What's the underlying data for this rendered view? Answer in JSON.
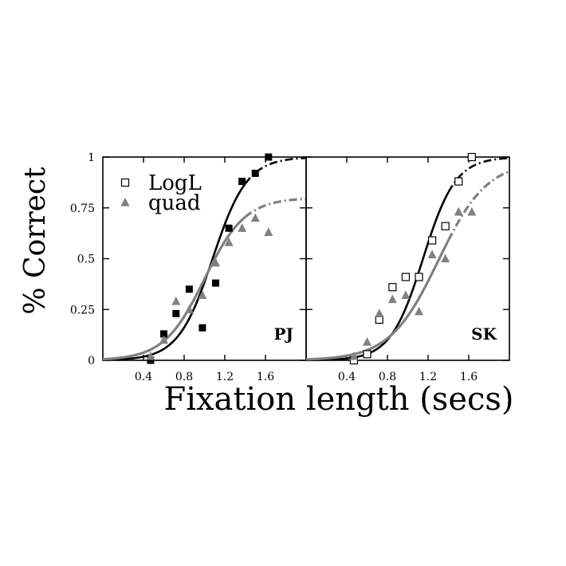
{
  "chart_data": {
    "type": "scatter",
    "xlabel": "Fixation length (secs)",
    "ylabel": "% Correct",
    "xlim": [
      0,
      2.0
    ],
    "ylim": [
      0,
      1
    ],
    "xticks": [
      "0.4",
      "0.8",
      "1.2",
      "1.6"
    ],
    "yticks": [
      "0",
      "0.25",
      "0.5",
      "0.75",
      "1"
    ],
    "grid": false,
    "legend": {
      "placement": "top-left",
      "entries": [
        {
          "name": "LogL",
          "marker": "square"
        },
        {
          "name": "quad",
          "marker": "triangle"
        }
      ]
    },
    "colors": {
      "logl": "#000000",
      "quad": "#808080"
    },
    "panels": [
      {
        "label": "PJ",
        "marker_fill": "filled",
        "series": [
          {
            "name": "LogL",
            "points": [
              [
                0.47,
                0.0
              ],
              [
                0.6,
                0.13
              ],
              [
                0.72,
                0.23
              ],
              [
                0.85,
                0.35
              ],
              [
                0.98,
                0.16
              ],
              [
                1.11,
                0.38
              ],
              [
                1.24,
                0.65
              ],
              [
                1.37,
                0.88
              ],
              [
                1.5,
                0.92
              ],
              [
                1.63,
                1.0
              ]
            ]
          },
          {
            "name": "quad",
            "points": [
              [
                0.47,
                0.02
              ],
              [
                0.6,
                0.1
              ],
              [
                0.72,
                0.29
              ],
              [
                0.85,
                0.25
              ],
              [
                0.98,
                0.32
              ],
              [
                1.11,
                0.48
              ],
              [
                1.24,
                0.58
              ],
              [
                1.37,
                0.65
              ],
              [
                1.5,
                0.7
              ],
              [
                1.63,
                0.63
              ]
            ]
          }
        ],
        "fits": [
          {
            "name": "LogL",
            "style": "solid-then-dashdot",
            "ceiling": 1.0,
            "midpoint": 1.08,
            "scale": 0.17
          },
          {
            "name": "quad",
            "style": "solid-then-dashdot",
            "ceiling": 0.8,
            "midpoint": 1.0,
            "scale": 0.2
          }
        ]
      },
      {
        "label": "SK",
        "marker_fill": "open",
        "series": [
          {
            "name": "LogL",
            "points": [
              [
                0.47,
                0.0
              ],
              [
                0.6,
                0.03
              ],
              [
                0.72,
                0.2
              ],
              [
                0.85,
                0.36
              ],
              [
                0.98,
                0.41
              ],
              [
                1.11,
                0.41
              ],
              [
                1.24,
                0.59
              ],
              [
                1.37,
                0.66
              ],
              [
                1.5,
                0.88
              ],
              [
                1.63,
                1.0
              ]
            ]
          },
          {
            "name": "quad",
            "points": [
              [
                0.47,
                0.02
              ],
              [
                0.6,
                0.09
              ],
              [
                0.72,
                0.23
              ],
              [
                0.85,
                0.3
              ],
              [
                0.98,
                0.32
              ],
              [
                1.11,
                0.24
              ],
              [
                1.24,
                0.52
              ],
              [
                1.37,
                0.5
              ],
              [
                1.5,
                0.73
              ],
              [
                1.63,
                0.73
              ]
            ]
          }
        ],
        "fits": [
          {
            "name": "LogL",
            "style": "solid-then-dashdot",
            "ceiling": 1.0,
            "midpoint": 1.15,
            "scale": 0.16
          },
          {
            "name": "quad",
            "style": "solid-then-dashdot",
            "ceiling": 0.98,
            "midpoint": 1.3,
            "scale": 0.24
          }
        ]
      }
    ]
  }
}
